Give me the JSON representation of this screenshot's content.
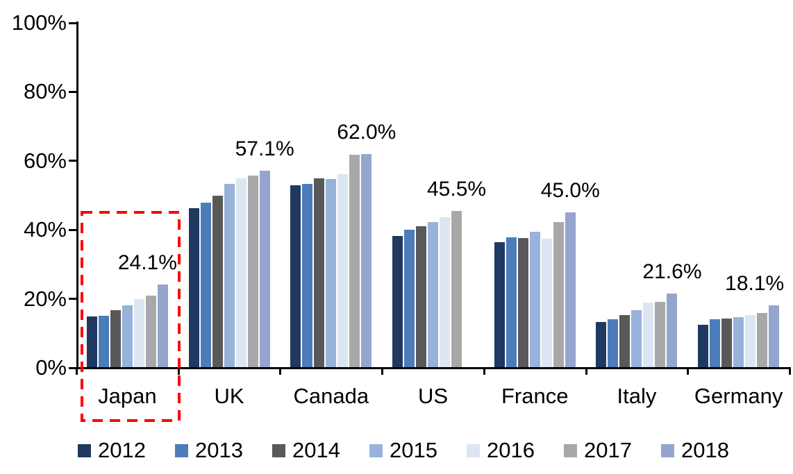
{
  "chart_data": {
    "type": "bar",
    "title": "",
    "xlabel": "",
    "ylabel": "",
    "ylim": [
      0,
      100
    ],
    "grid": false,
    "legend_position": "bottom",
    "y_ticks": [
      "0%",
      "20%",
      "40%",
      "60%",
      "80%",
      "100%"
    ],
    "categories": [
      "Japan",
      "UK",
      "Canada",
      "US",
      "France",
      "Italy",
      "Germany"
    ],
    "series": [
      {
        "name": "2012",
        "color": "#1F3960",
        "values": [
          14.8,
          46.3,
          53.0,
          38.3,
          36.5,
          13.3,
          12.5
        ]
      },
      {
        "name": "2013",
        "color": "#4C7DBA",
        "values": [
          15.0,
          47.9,
          53.4,
          40.0,
          37.8,
          14.1,
          14.0
        ]
      },
      {
        "name": "2014",
        "color": "#595959",
        "values": [
          16.7,
          49.9,
          55.0,
          41.1,
          37.7,
          15.3,
          14.2
        ]
      },
      {
        "name": "2015",
        "color": "#97B2DB",
        "values": [
          18.1,
          53.3,
          54.8,
          42.3,
          39.4,
          16.8,
          14.7
        ]
      },
      {
        "name": "2016",
        "color": "#DCE6F2",
        "values": [
          19.9,
          54.9,
          56.2,
          43.6,
          37.4,
          18.9,
          15.2
        ]
      },
      {
        "name": "2017",
        "color": "#A8A8A8",
        "values": [
          21.0,
          55.8,
          61.7,
          45.5,
          42.3,
          19.1,
          15.8
        ]
      },
      {
        "name": "2018",
        "color": "#94A5CE",
        "values": [
          24.1,
          57.1,
          62.0,
          null,
          45.0,
          21.6,
          18.1
        ]
      }
    ],
    "value_labels": [
      "24.1%",
      "57.1%",
      "62.0%",
      "45.5%",
      "45.0%",
      "21.6%",
      "18.1%"
    ],
    "annotations": {
      "highlight_category": "Japan",
      "highlight_style": "red-dashed-box",
      "highlight_color": "#FF0000"
    },
    "axis_color": "#000000"
  }
}
